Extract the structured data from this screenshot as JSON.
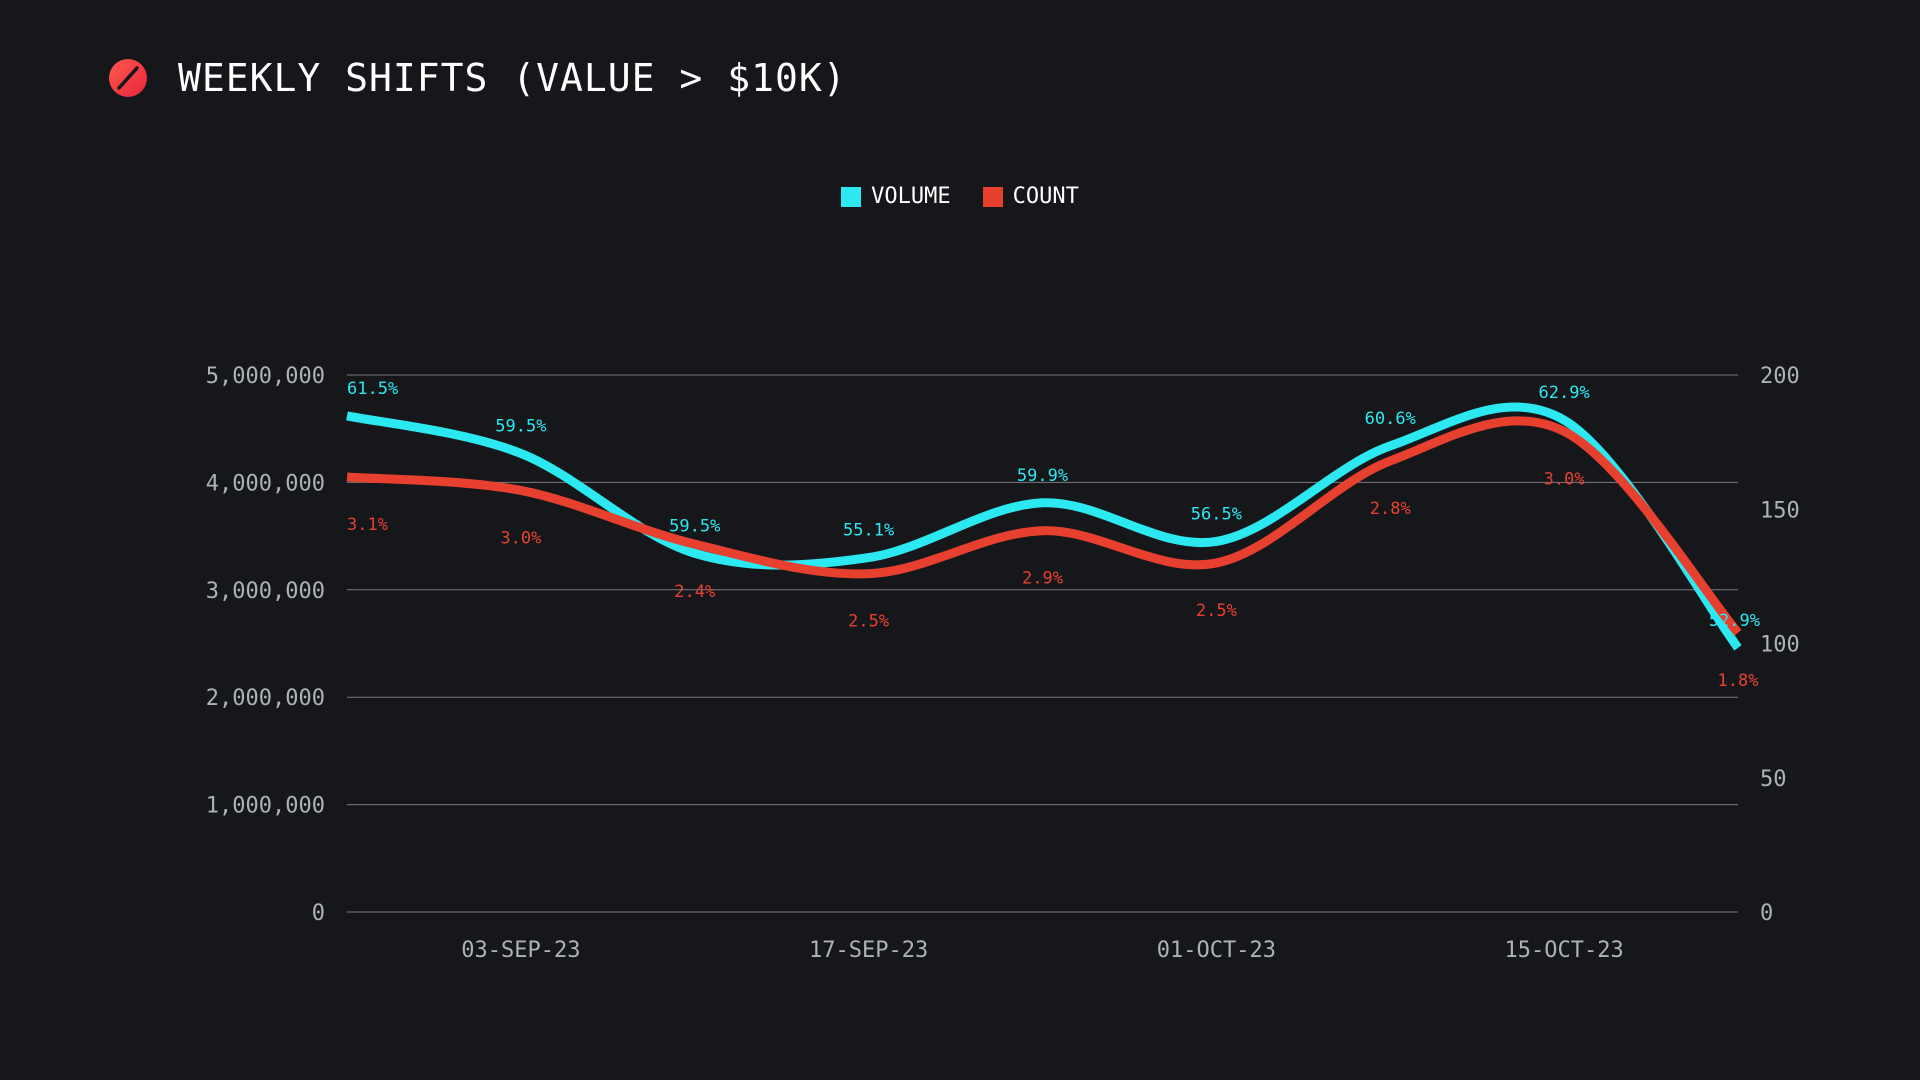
{
  "header": {
    "title": "WEEKLY SHIFTS (VALUE > $10K)",
    "logo_icon": "slashed-circle-logo"
  },
  "colors": {
    "background": "#16171b",
    "volume": "#2ce8f0",
    "count": "#e8402f",
    "grid": "#9a9ca3",
    "tick": "#aeb1b8"
  },
  "legend": {
    "volume_label": "VOLUME",
    "count_label": "COUNT"
  },
  "chart_data": {
    "type": "line",
    "title": "WEEKLY SHIFTS (VALUE > $10K)",
    "x": [
      "27-AUG-23",
      "03-SEP-23",
      "10-SEP-23",
      "17-SEP-23",
      "24-SEP-23",
      "01-OCT-23",
      "08-OCT-23",
      "15-OCT-23",
      "22-OCT-23"
    ],
    "x_tick_labels": [
      "03-SEP-23",
      "17-SEP-23",
      "01-OCT-23",
      "15-OCT-23"
    ],
    "y_left": {
      "range": [
        0,
        5000000
      ],
      "ticks": [
        0,
        1000000,
        2000000,
        3000000,
        4000000,
        5000000
      ],
      "tick_labels": [
        "0",
        "1,000,000",
        "2,000,000",
        "3,000,000",
        "4,000,000",
        "5,000,000"
      ]
    },
    "y_right": {
      "range": [
        0,
        200
      ],
      "ticks": [
        0,
        50,
        100,
        150,
        200
      ],
      "tick_labels": [
        "0",
        "50",
        "100",
        "150",
        "200"
      ]
    },
    "grid": true,
    "legend_position": "top-center",
    "series": [
      {
        "name": "VOLUME",
        "axis": "left",
        "values": [
          4620000,
          4270000,
          3340000,
          3300000,
          3810000,
          3450000,
          4340000,
          4580000,
          2460000
        ],
        "data_labels": [
          "61.5%",
          "59.5%",
          "59.5%",
          "55.1%",
          "59.9%",
          "56.5%",
          "60.6%",
          "62.9%",
          "52.9%"
        ]
      },
      {
        "name": "COUNT",
        "axis": "right",
        "values": [
          162,
          157,
          137,
          126,
          142,
          130,
          168,
          179,
          104
        ],
        "data_labels": [
          "3.1%",
          "3.0%",
          "2.4%",
          "2.5%",
          "2.9%",
          "2.5%",
          "2.8%",
          "3.0%",
          "1.8%"
        ]
      }
    ]
  }
}
